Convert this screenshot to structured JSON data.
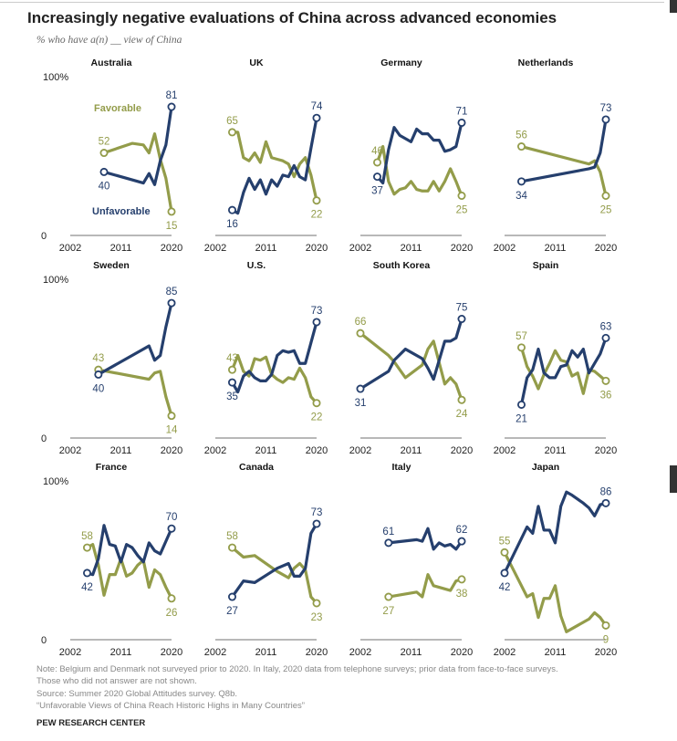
{
  "title": "Increasingly negative evaluations of China across advanced economies",
  "subtitle": "% who have a(n) __ view of China",
  "notes": [
    "Note: Belgium and Denmark not surveyed prior to 2020. In Italy, 2020 data from telephone surveys; prior data from face-to-face surveys.",
    "Those who did not answer are not shown.",
    "Source: Summer 2020 Global Attitudes survey. Q8b.",
    "“Unfavorable Views of China Reach Historic Highs in Many Countries”"
  ],
  "source_org": "PEW RESEARCH CENTER",
  "colors": {
    "favorable": "#939c4a",
    "unfavorable": "#253f6d",
    "axis": "#a0a0a0"
  },
  "chart_data": {
    "type": "line",
    "xlim": [
      2002,
      2020
    ],
    "ylim": [
      0,
      100
    ],
    "x_ticks": [
      "2002",
      "2011",
      "2020"
    ],
    "y_tick_labels": [
      "100%",
      "0"
    ],
    "legend": {
      "favorable": "Favorable",
      "unfavorable": "Unfavorable",
      "placement": "inline in Australia panel"
    },
    "panels": [
      {
        "country": "Australia",
        "favorable": [
          [
            2008,
            52
          ],
          [
            2013,
            58
          ],
          [
            2015,
            57
          ],
          [
            2016,
            52
          ],
          [
            2017,
            64
          ],
          [
            2018,
            48
          ],
          [
            2019,
            36
          ],
          [
            2020,
            15
          ]
        ],
        "unfavorable": [
          [
            2008,
            40
          ],
          [
            2013,
            35
          ],
          [
            2015,
            33
          ],
          [
            2016,
            39
          ],
          [
            2017,
            32
          ],
          [
            2018,
            47
          ],
          [
            2019,
            57
          ],
          [
            2020,
            81
          ]
        ]
      },
      {
        "country": "UK",
        "favorable": [
          [
            2005,
            65
          ],
          [
            2006,
            65
          ],
          [
            2007,
            49
          ],
          [
            2008,
            47
          ],
          [
            2009,
            52
          ],
          [
            2010,
            46
          ],
          [
            2011,
            59
          ],
          [
            2012,
            49
          ],
          [
            2013,
            48
          ],
          [
            2014,
            47
          ],
          [
            2015,
            45
          ],
          [
            2016,
            37
          ],
          [
            2017,
            45
          ],
          [
            2018,
            49
          ],
          [
            2019,
            38
          ],
          [
            2020,
            22
          ]
        ],
        "unfavorable": [
          [
            2005,
            16
          ],
          [
            2006,
            14
          ],
          [
            2007,
            27
          ],
          [
            2008,
            36
          ],
          [
            2009,
            29
          ],
          [
            2010,
            35
          ],
          [
            2011,
            26
          ],
          [
            2012,
            35
          ],
          [
            2013,
            31
          ],
          [
            2014,
            38
          ],
          [
            2015,
            37
          ],
          [
            2016,
            44
          ],
          [
            2017,
            37
          ],
          [
            2018,
            35
          ],
          [
            2019,
            55
          ],
          [
            2020,
            74
          ]
        ]
      },
      {
        "country": "Germany",
        "favorable": [
          [
            2005,
            46
          ],
          [
            2006,
            56
          ],
          [
            2007,
            34
          ],
          [
            2008,
            26
          ],
          [
            2009,
            29
          ],
          [
            2010,
            30
          ],
          [
            2011,
            34
          ],
          [
            2012,
            29
          ],
          [
            2013,
            28
          ],
          [
            2014,
            28
          ],
          [
            2015,
            34
          ],
          [
            2016,
            28
          ],
          [
            2017,
            34
          ],
          [
            2018,
            42
          ],
          [
            2019,
            34
          ],
          [
            2020,
            25
          ]
        ],
        "unfavorable": [
          [
            2005,
            37
          ],
          [
            2006,
            33
          ],
          [
            2007,
            54
          ],
          [
            2008,
            68
          ],
          [
            2009,
            63
          ],
          [
            2010,
            61
          ],
          [
            2011,
            59
          ],
          [
            2012,
            67
          ],
          [
            2013,
            64
          ],
          [
            2014,
            64
          ],
          [
            2015,
            60
          ],
          [
            2016,
            60
          ],
          [
            2017,
            53
          ],
          [
            2018,
            54
          ],
          [
            2019,
            56
          ],
          [
            2020,
            71
          ]
        ]
      },
      {
        "country": "Netherlands",
        "favorable": [
          [
            2005,
            56
          ],
          [
            2017,
            45
          ],
          [
            2018,
            47
          ],
          [
            2019,
            40
          ],
          [
            2020,
            25
          ]
        ],
        "unfavorable": [
          [
            2005,
            34
          ],
          [
            2017,
            42
          ],
          [
            2018,
            43
          ],
          [
            2019,
            52
          ],
          [
            2020,
            73
          ]
        ]
      },
      {
        "country": "Sweden",
        "favorable": [
          [
            2007,
            43
          ],
          [
            2016,
            37
          ],
          [
            2017,
            41
          ],
          [
            2018,
            42
          ],
          [
            2019,
            26
          ],
          [
            2020,
            14
          ]
        ],
        "unfavorable": [
          [
            2007,
            40
          ],
          [
            2016,
            58
          ],
          [
            2017,
            49
          ],
          [
            2018,
            52
          ],
          [
            2019,
            70
          ],
          [
            2020,
            85
          ]
        ]
      },
      {
        "country": "U.S.",
        "favorable": [
          [
            2005,
            43
          ],
          [
            2006,
            52
          ],
          [
            2007,
            42
          ],
          [
            2008,
            39
          ],
          [
            2009,
            50
          ],
          [
            2010,
            49
          ],
          [
            2011,
            51
          ],
          [
            2012,
            40
          ],
          [
            2013,
            37
          ],
          [
            2014,
            35
          ],
          [
            2015,
            38
          ],
          [
            2016,
            37
          ],
          [
            2017,
            44
          ],
          [
            2018,
            38
          ],
          [
            2019,
            26
          ],
          [
            2020,
            22
          ]
        ],
        "unfavorable": [
          [
            2005,
            35
          ],
          [
            2006,
            29
          ],
          [
            2007,
            39
          ],
          [
            2008,
            42
          ],
          [
            2009,
            38
          ],
          [
            2010,
            36
          ],
          [
            2011,
            36
          ],
          [
            2012,
            40
          ],
          [
            2013,
            52
          ],
          [
            2014,
            55
          ],
          [
            2015,
            54
          ],
          [
            2016,
            55
          ],
          [
            2017,
            47
          ],
          [
            2018,
            47
          ],
          [
            2019,
            60
          ],
          [
            2020,
            73
          ]
        ]
      },
      {
        "country": "South Korea",
        "favorable": [
          [
            2002,
            66
          ],
          [
            2007,
            52
          ],
          [
            2008,
            48
          ],
          [
            2010,
            38
          ],
          [
            2013,
            46
          ],
          [
            2014,
            56
          ],
          [
            2015,
            61
          ],
          [
            2017,
            34
          ],
          [
            2018,
            38
          ],
          [
            2019,
            34
          ],
          [
            2020,
            24
          ]
        ],
        "unfavorable": [
          [
            2002,
            31
          ],
          [
            2007,
            42
          ],
          [
            2008,
            49
          ],
          [
            2010,
            56
          ],
          [
            2013,
            50
          ],
          [
            2014,
            44
          ],
          [
            2015,
            37
          ],
          [
            2017,
            61
          ],
          [
            2018,
            61
          ],
          [
            2019,
            63
          ],
          [
            2020,
            75
          ]
        ]
      },
      {
        "country": "Spain",
        "favorable": [
          [
            2005,
            57
          ],
          [
            2006,
            45
          ],
          [
            2007,
            39
          ],
          [
            2008,
            31
          ],
          [
            2009,
            40
          ],
          [
            2010,
            47
          ],
          [
            2011,
            55
          ],
          [
            2012,
            49
          ],
          [
            2013,
            48
          ],
          [
            2014,
            39
          ],
          [
            2015,
            41
          ],
          [
            2016,
            28
          ],
          [
            2017,
            43
          ],
          [
            2018,
            42
          ],
          [
            2019,
            39
          ],
          [
            2020,
            36
          ]
        ],
        "unfavorable": [
          [
            2005,
            21
          ],
          [
            2006,
            38
          ],
          [
            2007,
            43
          ],
          [
            2008,
            56
          ],
          [
            2009,
            41
          ],
          [
            2010,
            38
          ],
          [
            2011,
            38
          ],
          [
            2012,
            45
          ],
          [
            2013,
            46
          ],
          [
            2014,
            55
          ],
          [
            2015,
            51
          ],
          [
            2016,
            56
          ],
          [
            2017,
            41
          ],
          [
            2018,
            47
          ],
          [
            2019,
            53
          ],
          [
            2020,
            63
          ]
        ]
      },
      {
        "country": "France",
        "favorable": [
          [
            2005,
            58
          ],
          [
            2006,
            60
          ],
          [
            2007,
            47
          ],
          [
            2008,
            28
          ],
          [
            2009,
            41
          ],
          [
            2010,
            41
          ],
          [
            2011,
            51
          ],
          [
            2012,
            40
          ],
          [
            2013,
            42
          ],
          [
            2014,
            47
          ],
          [
            2015,
            50
          ],
          [
            2016,
            33
          ],
          [
            2017,
            44
          ],
          [
            2018,
            41
          ],
          [
            2019,
            33
          ],
          [
            2020,
            26
          ]
        ],
        "unfavorable": [
          [
            2005,
            42
          ],
          [
            2006,
            41
          ],
          [
            2007,
            51
          ],
          [
            2008,
            72
          ],
          [
            2009,
            60
          ],
          [
            2010,
            59
          ],
          [
            2011,
            49
          ],
          [
            2012,
            60
          ],
          [
            2013,
            58
          ],
          [
            2014,
            53
          ],
          [
            2015,
            49
          ],
          [
            2016,
            61
          ],
          [
            2017,
            56
          ],
          [
            2018,
            54
          ],
          [
            2019,
            62
          ],
          [
            2020,
            70
          ]
        ]
      },
      {
        "country": "Canada",
        "favorable": [
          [
            2005,
            58
          ],
          [
            2007,
            52
          ],
          [
            2009,
            53
          ],
          [
            2013,
            43
          ],
          [
            2015,
            39
          ],
          [
            2016,
            45
          ],
          [
            2017,
            48
          ],
          [
            2018,
            44
          ],
          [
            2019,
            27
          ],
          [
            2020,
            23
          ]
        ],
        "unfavorable": [
          [
            2005,
            27
          ],
          [
            2007,
            37
          ],
          [
            2009,
            36
          ],
          [
            2013,
            45
          ],
          [
            2015,
            48
          ],
          [
            2016,
            40
          ],
          [
            2017,
            40
          ],
          [
            2018,
            45
          ],
          [
            2019,
            67
          ],
          [
            2020,
            73
          ]
        ]
      },
      {
        "country": "Italy",
        "favorable": [
          [
            2007,
            27
          ],
          [
            2012,
            30
          ],
          [
            2013,
            27
          ],
          [
            2014,
            41
          ],
          [
            2015,
            34
          ],
          [
            2016,
            33
          ],
          [
            2017,
            32
          ],
          [
            2018,
            31
          ],
          [
            2019,
            37
          ],
          [
            2020,
            38
          ]
        ],
        "unfavorable": [
          [
            2007,
            61
          ],
          [
            2012,
            63
          ],
          [
            2013,
            62
          ],
          [
            2014,
            70
          ],
          [
            2015,
            57
          ],
          [
            2016,
            61
          ],
          [
            2017,
            59
          ],
          [
            2018,
            60
          ],
          [
            2019,
            57
          ],
          [
            2020,
            62
          ]
        ]
      },
      {
        "country": "Japan",
        "favorable": [
          [
            2002,
            55
          ],
          [
            2006,
            27
          ],
          [
            2007,
            29
          ],
          [
            2008,
            14
          ],
          [
            2009,
            26
          ],
          [
            2010,
            26
          ],
          [
            2011,
            34
          ],
          [
            2012,
            15
          ],
          [
            2013,
            5
          ],
          [
            2016,
            11
          ],
          [
            2017,
            13
          ],
          [
            2018,
            17
          ],
          [
            2019,
            14
          ],
          [
            2020,
            9
          ]
        ],
        "unfavorable": [
          [
            2002,
            42
          ],
          [
            2006,
            71
          ],
          [
            2007,
            67
          ],
          [
            2008,
            84
          ],
          [
            2009,
            69
          ],
          [
            2010,
            69
          ],
          [
            2011,
            61
          ],
          [
            2012,
            84
          ],
          [
            2013,
            93
          ],
          [
            2014,
            91
          ],
          [
            2016,
            86
          ],
          [
            2017,
            83
          ],
          [
            2018,
            78
          ],
          [
            2019,
            85
          ],
          [
            2020,
            86
          ]
        ]
      }
    ]
  }
}
